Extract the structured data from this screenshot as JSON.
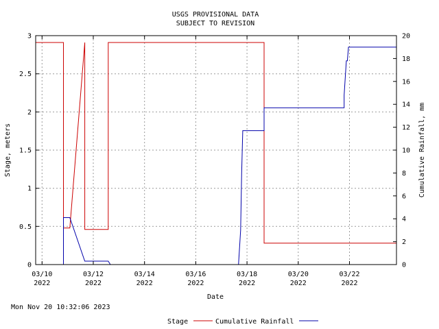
{
  "chart_data": {
    "type": "line",
    "title_lines": [
      "USGS PROVISIONAL DATA",
      "SUBJECT TO REVISION"
    ],
    "xlabel": "Date",
    "ylabel_left": "Stage, meters",
    "ylabel_right": "Cumulative Rainfall, mm",
    "x_range": [
      "2022-03-09 18:00",
      "2022-03-23 20:00"
    ],
    "x_ticks": [
      {
        "date": "2022-03-10",
        "label": [
          "03/10",
          "2022"
        ]
      },
      {
        "date": "2022-03-12",
        "label": [
          "03/12",
          "2022"
        ]
      },
      {
        "date": "2022-03-14",
        "label": [
          "03/14",
          "2022"
        ]
      },
      {
        "date": "2022-03-16",
        "label": [
          "03/16",
          "2022"
        ]
      },
      {
        "date": "2022-03-18",
        "label": [
          "03/18",
          "2022"
        ]
      },
      {
        "date": "2022-03-20",
        "label": [
          "03/20",
          "2022"
        ]
      },
      {
        "date": "2022-03-22",
        "label": [
          "03/22",
          "2022"
        ]
      }
    ],
    "y_left": {
      "range": [
        0,
        3
      ],
      "ticks": [
        0,
        0.5,
        1,
        1.5,
        2,
        2.5,
        3
      ],
      "tick_labels": [
        "0",
        "0.5",
        "1",
        "1.5",
        "2",
        "2.5",
        "3"
      ]
    },
    "y_right": {
      "range": [
        0,
        20
      ],
      "ticks": [
        0,
        2,
        4,
        6,
        8,
        10,
        12,
        14,
        16,
        18,
        20
      ],
      "tick_labels": [
        "0",
        "2",
        "4",
        "6",
        "8",
        "10",
        "12",
        "14",
        "16",
        "18",
        "20"
      ]
    },
    "grid": true,
    "legend_position": "bottom-center",
    "series": [
      {
        "name": "Stage",
        "axis": "left",
        "color": "#cc0000",
        "points": [
          [
            "2022-03-09 18:00",
            2.91
          ],
          [
            "2022-03-10 20:00",
            2.91
          ],
          [
            "2022-03-10 20:00",
            0.48
          ],
          [
            "2022-03-11 02:00",
            0.48
          ],
          [
            "2022-03-11 16:00",
            2.91
          ],
          [
            "2022-03-11 16:00",
            0.46
          ],
          [
            "2022-03-12 14:00",
            0.46
          ],
          [
            "2022-03-12 14:00",
            2.91
          ],
          [
            "2022-03-18 16:00",
            2.91
          ],
          [
            "2022-03-18 16:00",
            0.28
          ],
          [
            "2022-03-23 20:00",
            0.28
          ]
        ]
      },
      {
        "name": "Cumulative Rainfall",
        "axis": "right",
        "color": "#0000aa",
        "points": [
          [
            "2022-03-10 20:00",
            0
          ],
          [
            "2022-03-10 20:00",
            4.1
          ],
          [
            "2022-03-11 02:00",
            4.1
          ],
          [
            "2022-03-11 16:00",
            0.3
          ],
          [
            "2022-03-12 14:00",
            0.3
          ],
          [
            "2022-03-12 16:00",
            0
          ],
          [
            "2022-03-17 16:00",
            0
          ],
          [
            "2022-03-17 18:00",
            3
          ],
          [
            "2022-03-17 19:00",
            8
          ],
          [
            "2022-03-17 20:00",
            11.7
          ],
          [
            "2022-03-18 16:00",
            11.7
          ],
          [
            "2022-03-18 16:00",
            13.7
          ],
          [
            "2022-03-21 19:00",
            13.7
          ],
          [
            "2022-03-21 19:00",
            14.8
          ],
          [
            "2022-03-21 21:00",
            17.8
          ],
          [
            "2022-03-21 22:00",
            17.8
          ],
          [
            "2022-03-21 23:00",
            19
          ],
          [
            "2022-03-23 20:00",
            19
          ]
        ]
      }
    ]
  },
  "footer": {
    "timestamp": "Mon Nov 20 10:32:06 2023"
  },
  "legend": {
    "items": [
      {
        "label": "Stage",
        "color": "#cc0000"
      },
      {
        "label": "Cumulative Rainfall",
        "color": "#0000aa"
      }
    ]
  }
}
